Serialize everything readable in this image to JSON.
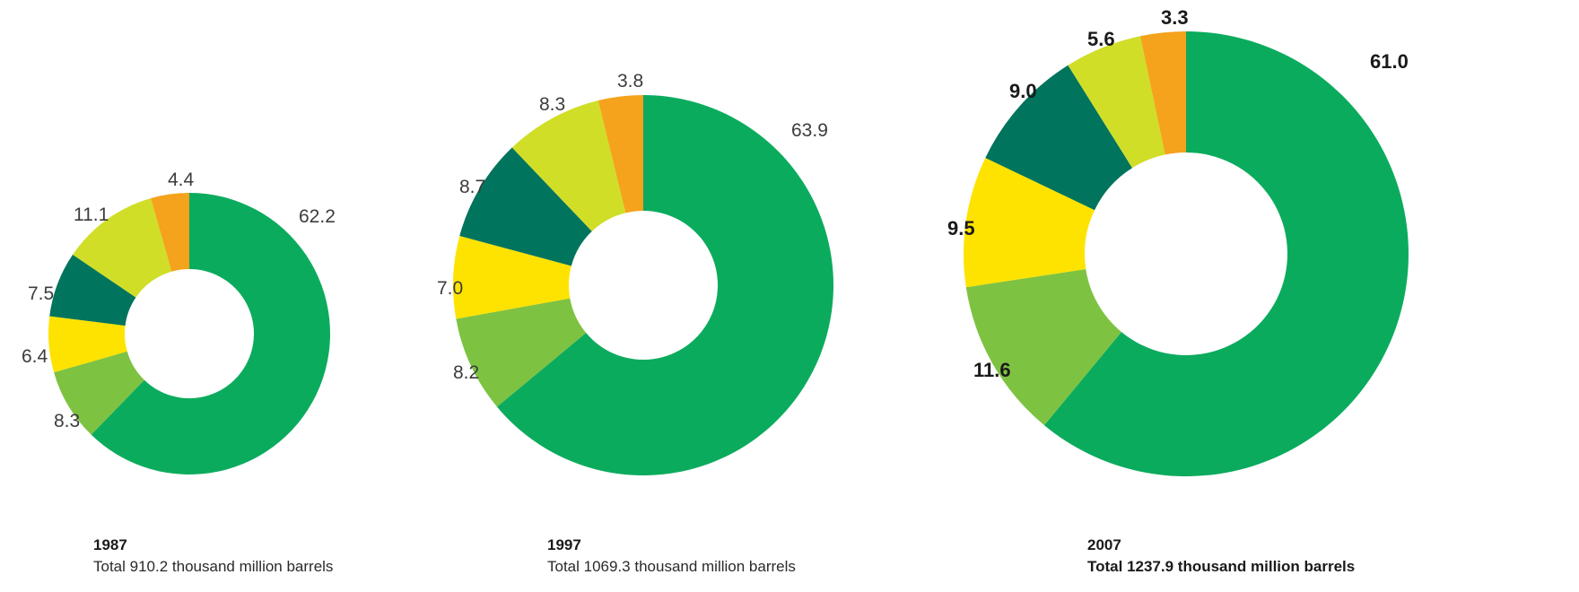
{
  "colors": {
    "green": "#0bab5d",
    "light_green": "#7ec242",
    "yellow": "#ffe300",
    "dark_green": "#00745c",
    "lime": "#d0de27",
    "orange": "#f5a21c"
  },
  "chart_data": [
    {
      "type": "pie",
      "style": "donut",
      "year": "1987",
      "total": "Total 910.2 thousand million barrels",
      "labels_bold": false,
      "slices": [
        {
          "color": "#0bab5d",
          "value": 62.2,
          "label": "62.2"
        },
        {
          "color": "#7ec242",
          "value": 8.3,
          "label": "8.3"
        },
        {
          "color": "#ffe300",
          "value": 6.4,
          "label": "6.4"
        },
        {
          "color": "#00745c",
          "value": 7.5,
          "label": "7.5"
        },
        {
          "color": "#d0de27",
          "value": 11.1,
          "label": "11.1"
        },
        {
          "color": "#f5a21c",
          "value": 4.4,
          "label": "4.4"
        }
      ]
    },
    {
      "type": "pie",
      "style": "donut",
      "year": "1997",
      "total": "Total 1069.3 thousand million barrels",
      "labels_bold": false,
      "slices": [
        {
          "color": "#0bab5d",
          "value": 63.9,
          "label": "63.9"
        },
        {
          "color": "#7ec242",
          "value": 8.2,
          "label": "8.2"
        },
        {
          "color": "#ffe300",
          "value": 7.0,
          "label": "7.0"
        },
        {
          "color": "#00745c",
          "value": 8.7,
          "label": "8.7"
        },
        {
          "color": "#d0de27",
          "value": 8.3,
          "label": "8.3"
        },
        {
          "color": "#f5a21c",
          "value": 3.8,
          "label": "3.8"
        }
      ]
    },
    {
      "type": "pie",
      "style": "donut",
      "year": "2007",
      "total": "Total 1237.9 thousand million barrels",
      "labels_bold": true,
      "slices": [
        {
          "color": "#0bab5d",
          "value": 61.0,
          "label": "61.0"
        },
        {
          "color": "#7ec242",
          "value": 11.6,
          "label": "11.6"
        },
        {
          "color": "#ffe300",
          "value": 9.5,
          "label": "9.5"
        },
        {
          "color": "#00745c",
          "value": 9.0,
          "label": "9.0"
        },
        {
          "color": "#d0de27",
          "value": 5.6,
          "label": "5.6"
        },
        {
          "color": "#f5a21c",
          "value": 3.3,
          "label": "3.3"
        }
      ]
    }
  ]
}
